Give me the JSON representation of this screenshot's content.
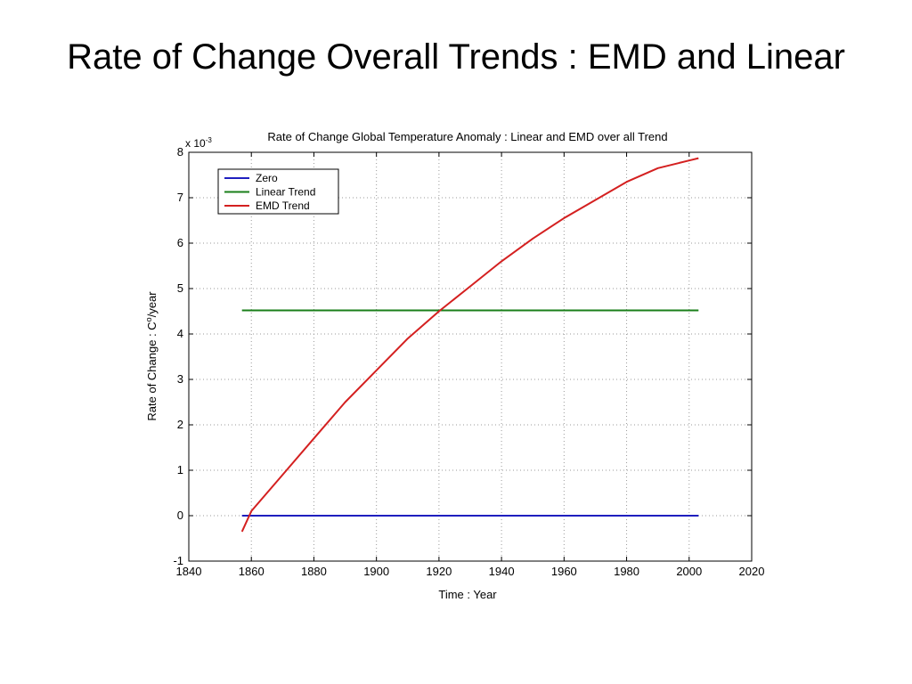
{
  "slide": {
    "title": "Rate of Change Overall Trends : EMD and Linear"
  },
  "chart_data": {
    "type": "line",
    "title": "Rate of Change Global Temperature Anomaly : Linear and EMD over all Trend",
    "xlabel": "Time : Year",
    "ylabel_main": "Rate of Change : C",
    "ylabel_sup": "o",
    "ylabel_tail": "/year",
    "exponent_base": "x 10",
    "exponent_power": "-3",
    "xlim": [
      1840,
      2020
    ],
    "ylim": [
      -1,
      8
    ],
    "xticks": [
      1840,
      1860,
      1880,
      1900,
      1920,
      1940,
      1960,
      1980,
      2000,
      2020
    ],
    "yticks": [
      -1,
      0,
      1,
      2,
      3,
      4,
      5,
      6,
      7,
      8
    ],
    "grid": true,
    "legend_position": "top-left",
    "series": [
      {
        "name": "Zero",
        "color": "#1f1fbf",
        "x": [
          1857,
          2003
        ],
        "y": [
          0,
          0
        ]
      },
      {
        "name": "Linear Trend",
        "color": "#1a7f1a",
        "x": [
          1857,
          2003
        ],
        "y": [
          4.52,
          4.52
        ]
      },
      {
        "name": "EMD Trend",
        "color": "#d42020",
        "x": [
          1857,
          1860,
          1870,
          1880,
          1890,
          1900,
          1910,
          1920,
          1930,
          1940,
          1950,
          1960,
          1970,
          1980,
          1990,
          2000,
          2003
        ],
        "y": [
          -0.35,
          0.1,
          0.9,
          1.7,
          2.5,
          3.2,
          3.9,
          4.5,
          5.05,
          5.6,
          6.1,
          6.55,
          6.95,
          7.35,
          7.65,
          7.82,
          7.87
        ]
      }
    ]
  }
}
